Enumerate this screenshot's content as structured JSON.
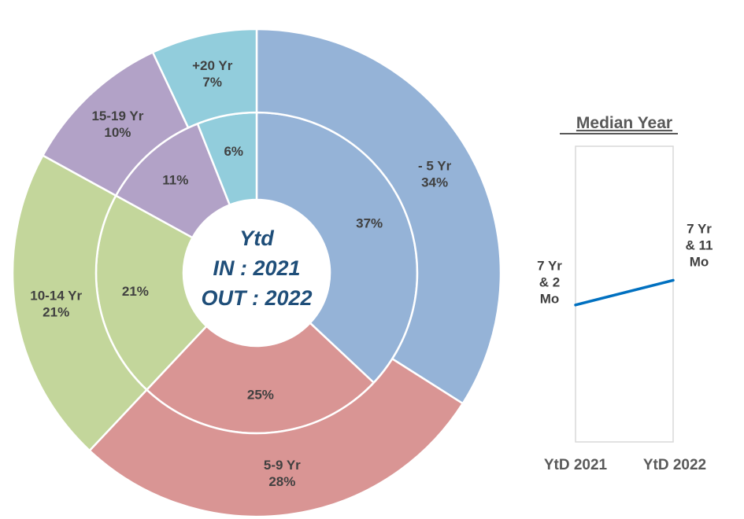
{
  "chart_data": [
    {
      "type": "pie",
      "variant": "double-donut",
      "center_text": [
        "Ytd",
        "IN : 2021",
        "OUT : 2022"
      ],
      "categories": [
        "- 5 Yr",
        "5-9 Yr",
        "10-14 Yr",
        "15-19 Yr",
        "+20 Yr"
      ],
      "colors": [
        "#95b3d7",
        "#d99594",
        "#c3d69b",
        "#b2a2c7",
        "#92cddc"
      ],
      "series": [
        {
          "ring": "inner",
          "values": [
            37,
            25,
            21,
            11,
            6
          ],
          "labels": [
            "37%",
            "25%",
            "21%",
            "11%",
            "6%"
          ]
        },
        {
          "ring": "outer",
          "values": [
            34,
            28,
            21,
            10,
            7
          ],
          "labels": [
            "- 5 Yr\n34%",
            "5-9 Yr\n28%",
            "10-14 Yr\n21%",
            "15-19 Yr\n10%",
            "+20 Yr\n7%"
          ]
        }
      ]
    },
    {
      "type": "line",
      "title": "Median Year",
      "categories": [
        "YtD 2021",
        "YtD 2022"
      ],
      "values": [
        7.17,
        7.92
      ],
      "value_labels": [
        "7 Yr\n& 2\nMo",
        "7 Yr\n& 11\nMo"
      ],
      "color": "#0070c0",
      "ylim": [
        0,
        10
      ]
    }
  ]
}
